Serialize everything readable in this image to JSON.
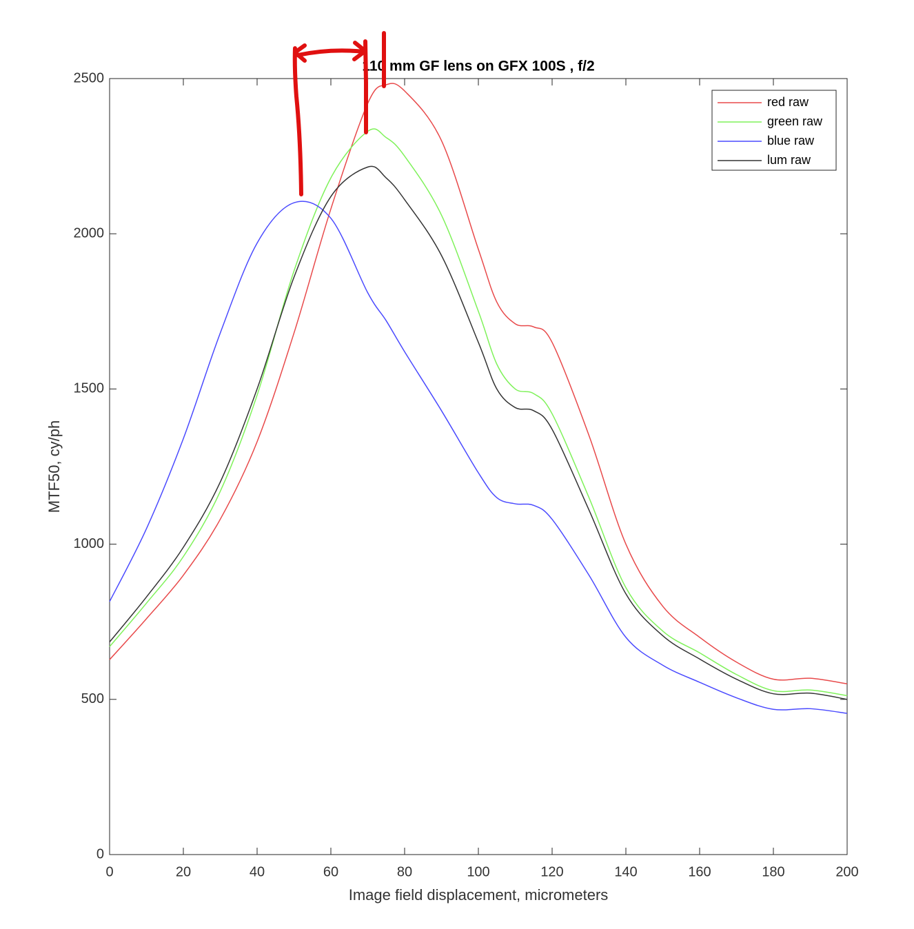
{
  "chart_data": {
    "type": "line",
    "title": "110 mm GF lens on GFX 100S , f/2",
    "x_label": "Image field displacement, micrometers",
    "y_label": "MTF50, cy/ph",
    "x": [
      0,
      10,
      20,
      30,
      40,
      50,
      60,
      70,
      75,
      80,
      90,
      100,
      105,
      110,
      115,
      120,
      130,
      140,
      150,
      160,
      170,
      180,
      190,
      200
    ],
    "series": [
      {
        "name": "red raw",
        "color": "#e8494a",
        "values": [
          628,
          760,
          900,
          1080,
          1330,
          1680,
          2080,
          2420,
          2480,
          2460,
          2300,
          1950,
          1780,
          1710,
          1700,
          1650,
          1350,
          1000,
          800,
          700,
          620,
          565,
          568,
          550
        ]
      },
      {
        "name": "green raw",
        "color": "#7ff25a",
        "values": [
          670,
          810,
          960,
          1170,
          1480,
          1880,
          2180,
          2330,
          2310,
          2250,
          2060,
          1750,
          1580,
          1500,
          1485,
          1420,
          1150,
          860,
          720,
          650,
          580,
          528,
          530,
          512
        ]
      },
      {
        "name": "blue raw",
        "color": "#4a4aff",
        "values": [
          815,
          1050,
          1340,
          1680,
          1970,
          2100,
          2050,
          1810,
          1720,
          1620,
          1430,
          1230,
          1150,
          1130,
          1125,
          1080,
          900,
          700,
          610,
          555,
          505,
          468,
          470,
          455
        ]
      },
      {
        "name": "lum raw",
        "color": "#333333",
        "values": [
          685,
          830,
          990,
          1200,
          1500,
          1860,
          2120,
          2215,
          2180,
          2110,
          1930,
          1650,
          1500,
          1440,
          1430,
          1370,
          1110,
          840,
          705,
          630,
          565,
          518,
          520,
          500
        ]
      }
    ],
    "xlim": [
      0,
      200
    ],
    "xticks": [
      0,
      20,
      40,
      60,
      80,
      100,
      120,
      140,
      160,
      180,
      200
    ],
    "ylim": [
      0,
      2500
    ],
    "yticks": [
      0,
      500,
      1000,
      1500,
      2000,
      2500
    ],
    "grid": false,
    "legend": "top-right"
  }
}
